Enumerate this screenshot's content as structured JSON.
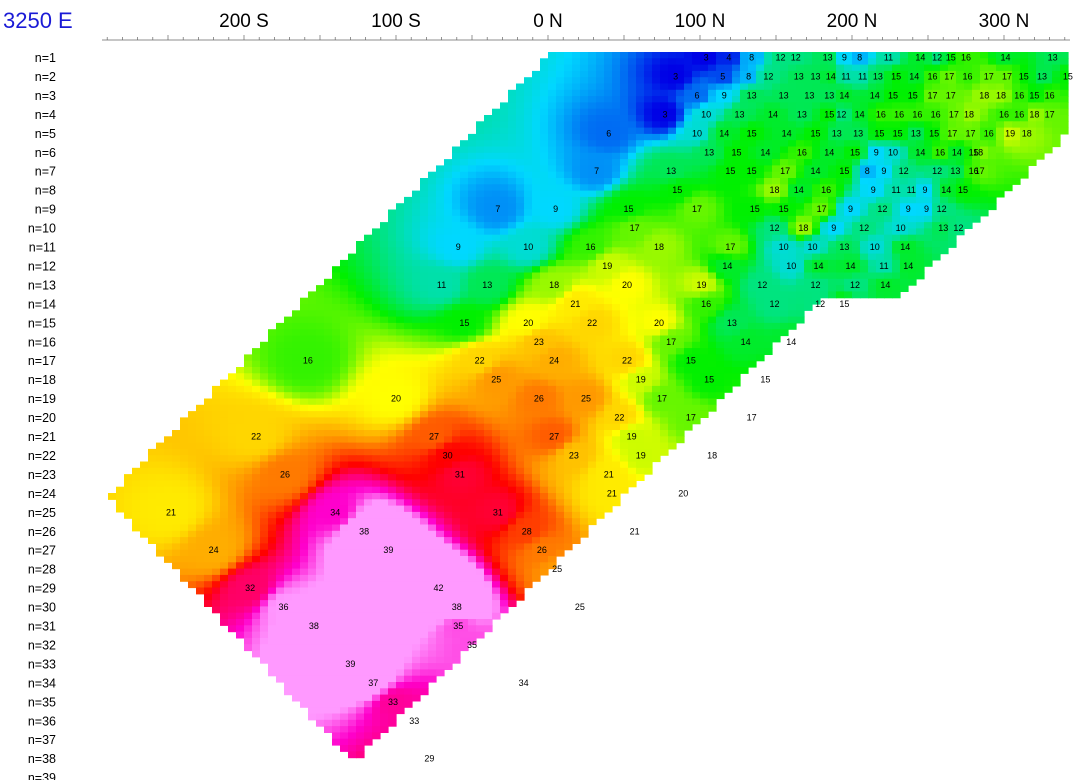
{
  "chart_data": {
    "type": "heatmap",
    "title": "3250 E",
    "x_ticks": [
      "200 S",
      "100 S",
      "0 N",
      "100 N",
      "200 N",
      "300 N"
    ],
    "x_tick_stations": [
      -200,
      -100,
      0,
      100,
      200,
      300
    ],
    "row_labels": [
      "n=1",
      "n=2",
      "n=3",
      "n=4",
      "n=5",
      "n=6",
      "n=7",
      "n=8",
      "n=9",
      "n=10",
      "n=11",
      "n=12",
      "n=13",
      "n=14",
      "n=15",
      "n=16",
      "n=17",
      "n=18",
      "n=19",
      "n=20",
      "n=21",
      "n=22",
      "n=23",
      "n=24",
      "n=25",
      "n=26",
      "n=27",
      "n=28",
      "n=29",
      "n=30",
      "n=31",
      "n=32",
      "n=33",
      "n=34",
      "n=35",
      "n=36",
      "n=37",
      "n=38",
      "n=39"
    ],
    "color_scale": {
      "stops": [
        [
          3,
          "#0000e6"
        ],
        [
          9,
          "#00d8ff"
        ],
        [
          15,
          "#00f000"
        ],
        [
          20,
          "#ffff00"
        ],
        [
          25,
          "#ff9900"
        ],
        [
          30,
          "#ff0000"
        ],
        [
          34,
          "#ff00cc"
        ],
        [
          36,
          "#ff99ff"
        ]
      ]
    },
    "points": [
      {
        "x": -248,
        "n": 25,
        "v": 21
      },
      {
        "x": -220,
        "n": 27,
        "v": 24
      },
      {
        "x": -192,
        "n": 21,
        "v": 22
      },
      {
        "x": -196,
        "n": 29,
        "v": 32
      },
      {
        "x": -174,
        "n": 30,
        "v": 36
      },
      {
        "x": -154,
        "n": 31,
        "v": 38
      },
      {
        "x": -173,
        "n": 23,
        "v": 26
      },
      {
        "x": -158,
        "n": 17,
        "v": 16
      },
      {
        "x": -140,
        "n": 25,
        "v": 34
      },
      {
        "x": -130,
        "n": 33,
        "v": 39
      },
      {
        "x": -121,
        "n": 26,
        "v": 38
      },
      {
        "x": -115,
        "n": 34,
        "v": 37
      },
      {
        "x": -105,
        "n": 27,
        "v": 39
      },
      {
        "x": -102,
        "n": 35,
        "v": 33
      },
      {
        "x": -100,
        "n": 19,
        "v": 20
      },
      {
        "x": -88,
        "n": 36,
        "v": 33
      },
      {
        "x": -78,
        "n": 38,
        "v": 29
      },
      {
        "x": -75,
        "n": 21,
        "v": 27
      },
      {
        "x": -72,
        "n": 29,
        "v": 42
      },
      {
        "x": -66,
        "n": 22,
        "v": 30
      },
      {
        "x": -60,
        "n": 30,
        "v": 38
      },
      {
        "x": -58,
        "n": 23,
        "v": 31
      },
      {
        "x": -70,
        "n": 13,
        "v": 11
      },
      {
        "x": -59,
        "n": 11,
        "v": 9
      },
      {
        "x": -59,
        "n": 31,
        "v": 35
      },
      {
        "x": -55,
        "n": 15,
        "v": 15
      },
      {
        "x": -50,
        "n": 32,
        "v": 35
      },
      {
        "x": -45,
        "n": 17,
        "v": 22
      },
      {
        "x": -40,
        "n": 13,
        "v": 13
      },
      {
        "x": -34,
        "n": 18,
        "v": 25
      },
      {
        "x": -33,
        "n": 25,
        "v": 31
      },
      {
        "x": -33,
        "n": 9,
        "v": 7
      },
      {
        "x": -16,
        "n": 34,
        "v": 34
      },
      {
        "x": -14,
        "n": 26,
        "v": 28
      },
      {
        "x": -13,
        "n": 11,
        "v": 10
      },
      {
        "x": -13,
        "n": 15,
        "v": 20
      },
      {
        "x": -6,
        "n": 19,
        "v": 26
      },
      {
        "x": -6,
        "n": 16,
        "v": 23
      },
      {
        "x": -4,
        "n": 27,
        "v": 26
      },
      {
        "x": 6,
        "n": 28,
        "v": 25
      },
      {
        "x": 4,
        "n": 17,
        "v": 24
      },
      {
        "x": 4,
        "n": 21,
        "v": 27
      },
      {
        "x": 4,
        "n": 13,
        "v": 18
      },
      {
        "x": 5,
        "n": 9,
        "v": 9
      },
      {
        "x": 17,
        "n": 22,
        "v": 23
      },
      {
        "x": 18,
        "n": 14,
        "v": 21
      },
      {
        "x": 21,
        "n": 30,
        "v": 25
      },
      {
        "x": 25,
        "n": 19,
        "v": 25
      },
      {
        "x": 28,
        "n": 11,
        "v": 16
      },
      {
        "x": 29,
        "n": 15,
        "v": 22
      },
      {
        "x": 32,
        "n": 7,
        "v": 7
      },
      {
        "x": 39,
        "n": 12,
        "v": 19
      },
      {
        "x": 40,
        "n": 23,
        "v": 21
      },
      {
        "x": 40,
        "n": 5,
        "v": 6
      },
      {
        "x": 42,
        "n": 24,
        "v": 21
      },
      {
        "x": 47,
        "n": 20,
        "v": 22
      },
      {
        "x": 52,
        "n": 17,
        "v": 22
      },
      {
        "x": 52,
        "n": 13,
        "v": 20
      },
      {
        "x": 53,
        "n": 9,
        "v": 15
      },
      {
        "x": 55,
        "n": 21,
        "v": 19
      },
      {
        "x": 57,
        "n": 10,
        "v": 17
      },
      {
        "x": 57,
        "n": 26,
        "v": 21
      },
      {
        "x": 61,
        "n": 22,
        "v": 19
      },
      {
        "x": 61,
        "n": 18,
        "v": 19
      },
      {
        "x": 73,
        "n": 15,
        "v": 20
      },
      {
        "x": 73,
        "n": 11,
        "v": 18
      },
      {
        "x": 75,
        "n": 19,
        "v": 17
      },
      {
        "x": 77,
        "n": 4,
        "v": 3
      },
      {
        "x": 81,
        "n": 16,
        "v": 17
      },
      {
        "x": 81,
        "n": 7,
        "v": 13
      },
      {
        "x": 84,
        "n": 2,
        "v": 3
      },
      {
        "x": 85,
        "n": 8,
        "v": 15
      },
      {
        "x": 89,
        "n": 24,
        "v": 20
      },
      {
        "x": 94,
        "n": 20,
        "v": 17
      },
      {
        "x": 94,
        "n": 17,
        "v": 15
      },
      {
        "x": 98,
        "n": 3,
        "v": 6
      },
      {
        "x": 98,
        "n": 9,
        "v": 17
      },
      {
        "x": 98,
        "n": 5,
        "v": 10
      },
      {
        "x": 101,
        "n": 13,
        "v": 19
      },
      {
        "x": 104,
        "n": 14,
        "v": 16
      },
      {
        "x": 104,
        "n": 4,
        "v": 10
      },
      {
        "x": 104,
        "n": 1,
        "v": 3
      },
      {
        "x": 106,
        "n": 18,
        "v": 15
      },
      {
        "x": 106,
        "n": 6,
        "v": 13
      },
      {
        "x": 108,
        "n": 22,
        "v": 18
      },
      {
        "x": 115,
        "n": 2,
        "v": 5
      },
      {
        "x": 116,
        "n": 5,
        "v": 14
      },
      {
        "x": 116,
        "n": 3,
        "v": 9
      },
      {
        "x": 118,
        "n": 12,
        "v": 14
      },
      {
        "x": 119,
        "n": 1,
        "v": 4
      },
      {
        "x": 120,
        "n": 7,
        "v": 15
      },
      {
        "x": 120,
        "n": 11,
        "v": 17
      },
      {
        "x": 121,
        "n": 15,
        "v": 13
      },
      {
        "x": 124,
        "n": 6,
        "v": 15
      },
      {
        "x": 126,
        "n": 4,
        "v": 13
      },
      {
        "x": 130,
        "n": 16,
        "v": 14
      },
      {
        "x": 132,
        "n": 2,
        "v": 8
      },
      {
        "x": 134,
        "n": 1,
        "v": 8
      },
      {
        "x": 134,
        "n": 5,
        "v": 15
      },
      {
        "x": 134,
        "n": 20,
        "v": 17
      },
      {
        "x": 134,
        "n": 3,
        "v": 13
      },
      {
        "x": 134,
        "n": 7,
        "v": 15
      },
      {
        "x": 136,
        "n": 9,
        "v": 15
      },
      {
        "x": 141,
        "n": 13,
        "v": 12
      },
      {
        "x": 143,
        "n": 6,
        "v": 14
      },
      {
        "x": 143,
        "n": 18,
        "v": 15
      },
      {
        "x": 145,
        "n": 2,
        "v": 12
      },
      {
        "x": 149,
        "n": 10,
        "v": 12
      },
      {
        "x": 149,
        "n": 14,
        "v": 12
      },
      {
        "x": 149,
        "n": 8,
        "v": 18
      },
      {
        "x": 148,
        "n": 4,
        "v": 14
      },
      {
        "x": 153,
        "n": 1,
        "v": 12
      },
      {
        "x": 155,
        "n": 3,
        "v": 13
      },
      {
        "x": 155,
        "n": 9,
        "v": 15
      },
      {
        "x": 155,
        "n": 11,
        "v": 10
      },
      {
        "x": 156,
        "n": 7,
        "v": 17
      },
      {
        "x": 157,
        "n": 5,
        "v": 14
      },
      {
        "x": 160,
        "n": 12,
        "v": 10
      },
      {
        "x": 160,
        "n": 16,
        "v": 14
      },
      {
        "x": 163,
        "n": 1,
        "v": 12
      },
      {
        "x": 165,
        "n": 2,
        "v": 13
      },
      {
        "x": 165,
        "n": 8,
        "v": 14
      },
      {
        "x": 167,
        "n": 4,
        "v": 13
      },
      {
        "x": 167,
        "n": 6,
        "v": 16
      },
      {
        "x": 168,
        "n": 10,
        "v": 18
      },
      {
        "x": 172,
        "n": 3,
        "v": 13
      },
      {
        "x": 174,
        "n": 11,
        "v": 10
      },
      {
        "x": 176,
        "n": 7,
        "v": 14
      },
      {
        "x": 176,
        "n": 5,
        "v": 15
      },
      {
        "x": 176,
        "n": 2,
        "v": 13
      },
      {
        "x": 176,
        "n": 13,
        "v": 12
      },
      {
        "x": 178,
        "n": 12,
        "v": 14
      },
      {
        "x": 179,
        "n": 14,
        "v": 12
      },
      {
        "x": 180,
        "n": 9,
        "v": 17
      },
      {
        "x": 183,
        "n": 8,
        "v": 16
      },
      {
        "x": 184,
        "n": 1,
        "v": 13
      },
      {
        "x": 185,
        "n": 3,
        "v": 13
      },
      {
        "x": 185,
        "n": 6,
        "v": 14
      },
      {
        "x": 185,
        "n": 4,
        "v": 15
      },
      {
        "x": 186,
        "n": 2,
        "v": 14
      },
      {
        "x": 188,
        "n": 10,
        "v": 9
      },
      {
        "x": 190,
        "n": 5,
        "v": 13
      },
      {
        "x": 193,
        "n": 4,
        "v": 12
      },
      {
        "x": 195,
        "n": 1,
        "v": 9
      },
      {
        "x": 195,
        "n": 3,
        "v": 14
      },
      {
        "x": 195,
        "n": 7,
        "v": 15
      },
      {
        "x": 195,
        "n": 14,
        "v": 15
      },
      {
        "x": 195,
        "n": 11,
        "v": 13
      },
      {
        "x": 196,
        "n": 2,
        "v": 11
      },
      {
        "x": 199,
        "n": 9,
        "v": 9
      },
      {
        "x": 199,
        "n": 12,
        "v": 14
      },
      {
        "x": 202,
        "n": 6,
        "v": 15
      },
      {
        "x": 202,
        "n": 13,
        "v": 12
      },
      {
        "x": 204,
        "n": 5,
        "v": 13
      },
      {
        "x": 205,
        "n": 4,
        "v": 14
      },
      {
        "x": 205,
        "n": 1,
        "v": 8
      },
      {
        "x": 207,
        "n": 2,
        "v": 11
      },
      {
        "x": 208,
        "n": 10,
        "v": 12
      },
      {
        "x": 210,
        "n": 7,
        "v": 8
      },
      {
        "x": 214,
        "n": 8,
        "v": 9
      },
      {
        "x": 215,
        "n": 3,
        "v": 14
      },
      {
        "x": 215,
        "n": 11,
        "v": 10
      },
      {
        "x": 216,
        "n": 6,
        "v": 9
      },
      {
        "x": 217,
        "n": 2,
        "v": 13
      },
      {
        "x": 218,
        "n": 5,
        "v": 15
      },
      {
        "x": 219,
        "n": 4,
        "v": 16
      },
      {
        "x": 220,
        "n": 9,
        "v": 12
      },
      {
        "x": 221,
        "n": 12,
        "v": 11
      },
      {
        "x": 221,
        "n": 7,
        "v": 9
      },
      {
        "x": 222,
        "n": 13,
        "v": 14
      },
      {
        "x": 224,
        "n": 1,
        "v": 11
      },
      {
        "x": 227,
        "n": 3,
        "v": 15
      },
      {
        "x": 227,
        "n": 6,
        "v": 10
      },
      {
        "x": 229,
        "n": 2,
        "v": 15
      },
      {
        "x": 229,
        "n": 8,
        "v": 11
      },
      {
        "x": 230,
        "n": 5,
        "v": 15
      },
      {
        "x": 231,
        "n": 4,
        "v": 16
      },
      {
        "x": 232,
        "n": 10,
        "v": 10
      },
      {
        "x": 234,
        "n": 7,
        "v": 12
      },
      {
        "x": 235,
        "n": 11,
        "v": 14
      },
      {
        "x": 237,
        "n": 9,
        "v": 9
      },
      {
        "x": 237,
        "n": 12,
        "v": 14
      },
      {
        "x": 239,
        "n": 8,
        "v": 11
      },
      {
        "x": 240,
        "n": 3,
        "v": 15
      },
      {
        "x": 241,
        "n": 2,
        "v": 14
      },
      {
        "x": 242,
        "n": 5,
        "v": 13
      },
      {
        "x": 243,
        "n": 4,
        "v": 16
      },
      {
        "x": 245,
        "n": 1,
        "v": 14
      },
      {
        "x": 245,
        "n": 6,
        "v": 14
      },
      {
        "x": 248,
        "n": 8,
        "v": 9
      },
      {
        "x": 249,
        "n": 9,
        "v": 9
      },
      {
        "x": 253,
        "n": 3,
        "v": 17
      },
      {
        "x": 253,
        "n": 2,
        "v": 16
      },
      {
        "x": 254,
        "n": 5,
        "v": 15
      },
      {
        "x": 255,
        "n": 4,
        "v": 16
      },
      {
        "x": 256,
        "n": 1,
        "v": 12
      },
      {
        "x": 256,
        "n": 7,
        "v": 12
      },
      {
        "x": 258,
        "n": 6,
        "v": 16
      },
      {
        "x": 259,
        "n": 9,
        "v": 12
      },
      {
        "x": 260,
        "n": 10,
        "v": 13
      },
      {
        "x": 262,
        "n": 8,
        "v": 14
      },
      {
        "x": 264,
        "n": 2,
        "v": 17
      },
      {
        "x": 265,
        "n": 3,
        "v": 17
      },
      {
        "x": 265,
        "n": 1,
        "v": 15
      },
      {
        "x": 266,
        "n": 5,
        "v": 17
      },
      {
        "x": 267,
        "n": 4,
        "v": 17
      },
      {
        "x": 268,
        "n": 7,
        "v": 13
      },
      {
        "x": 269,
        "n": 6,
        "v": 14
      },
      {
        "x": 270,
        "n": 10,
        "v": 12
      },
      {
        "x": 273,
        "n": 8,
        "v": 15
      },
      {
        "x": 275,
        "n": 1,
        "v": 16
      },
      {
        "x": 276,
        "n": 2,
        "v": 16
      },
      {
        "x": 277,
        "n": 4,
        "v": 18
      },
      {
        "x": 278,
        "n": 5,
        "v": 17
      },
      {
        "x": 280,
        "n": 7,
        "v": 16
      },
      {
        "x": 280,
        "n": 6,
        "v": 15
      },
      {
        "x": 283,
        "n": 6,
        "v": 18
      },
      {
        "x": 284,
        "n": 7,
        "v": 17
      },
      {
        "x": 287,
        "n": 3,
        "v": 18
      },
      {
        "x": 290,
        "n": 5,
        "v": 16
      },
      {
        "x": 290,
        "n": 2,
        "v": 17
      },
      {
        "x": 298,
        "n": 3,
        "v": 18
      },
      {
        "x": 300,
        "n": 4,
        "v": 16
      },
      {
        "x": 301,
        "n": 1,
        "v": 14
      },
      {
        "x": 302,
        "n": 2,
        "v": 17
      },
      {
        "x": 304,
        "n": 5,
        "v": 19
      },
      {
        "x": 310,
        "n": 3,
        "v": 16
      },
      {
        "x": 310,
        "n": 4,
        "v": 16
      },
      {
        "x": 313,
        "n": 2,
        "v": 15
      },
      {
        "x": 315,
        "n": 5,
        "v": 18
      },
      {
        "x": 320,
        "n": 3,
        "v": 15
      },
      {
        "x": 320,
        "n": 4,
        "v": 18
      },
      {
        "x": 325,
        "n": 2,
        "v": 13
      },
      {
        "x": 330,
        "n": 4,
        "v": 17
      },
      {
        "x": 330,
        "n": 3,
        "v": 16
      },
      {
        "x": 332,
        "n": 1,
        "v": 13
      },
      {
        "x": 342,
        "n": 2,
        "v": 15
      }
    ]
  }
}
